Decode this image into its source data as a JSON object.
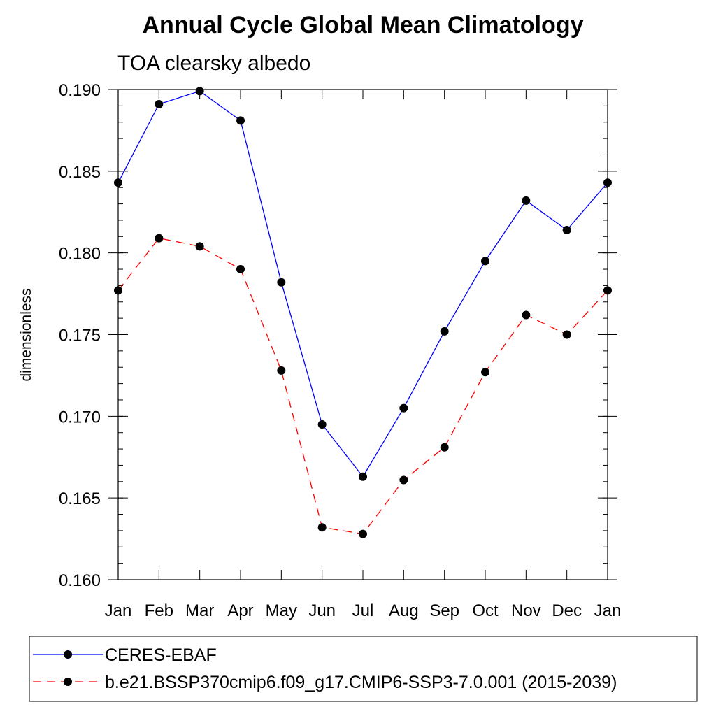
{
  "chart_data": {
    "type": "line",
    "title": "Annual Cycle Global Mean Climatology",
    "subtitle": "TOA clearsky albedo",
    "xlabel": "",
    "ylabel": "dimensionless",
    "categories": [
      "Jan",
      "Feb",
      "Mar",
      "Apr",
      "May",
      "Jun",
      "Jul",
      "Aug",
      "Sep",
      "Oct",
      "Nov",
      "Dec",
      "Jan"
    ],
    "ylim": [
      0.16,
      0.19
    ],
    "yticks": [
      "0.160",
      "0.165",
      "0.170",
      "0.175",
      "0.180",
      "0.185",
      "0.190"
    ],
    "grid": false,
    "legend_position": "bottom",
    "series": [
      {
        "name": "CERES-EBAF",
        "color": "#0000ff",
        "line_style": "solid",
        "marker": "filled-circle",
        "values": [
          0.1843,
          0.1891,
          0.1899,
          0.1881,
          0.1782,
          0.1695,
          0.1663,
          0.1705,
          0.1752,
          0.1795,
          0.1832,
          0.1814,
          0.1843
        ]
      },
      {
        "name": "b.e21.BSSP370cmip6.f09_g17.CMIP6-SSP3-7.0.001 (2015-2039)",
        "color": "#ff0000",
        "line_style": "dashed",
        "marker": "filled-circle",
        "values": [
          0.1777,
          0.1809,
          0.1804,
          0.179,
          0.1728,
          0.1632,
          0.1628,
          0.1661,
          0.1681,
          0.1727,
          0.1762,
          0.175,
          0.1777
        ]
      }
    ]
  }
}
